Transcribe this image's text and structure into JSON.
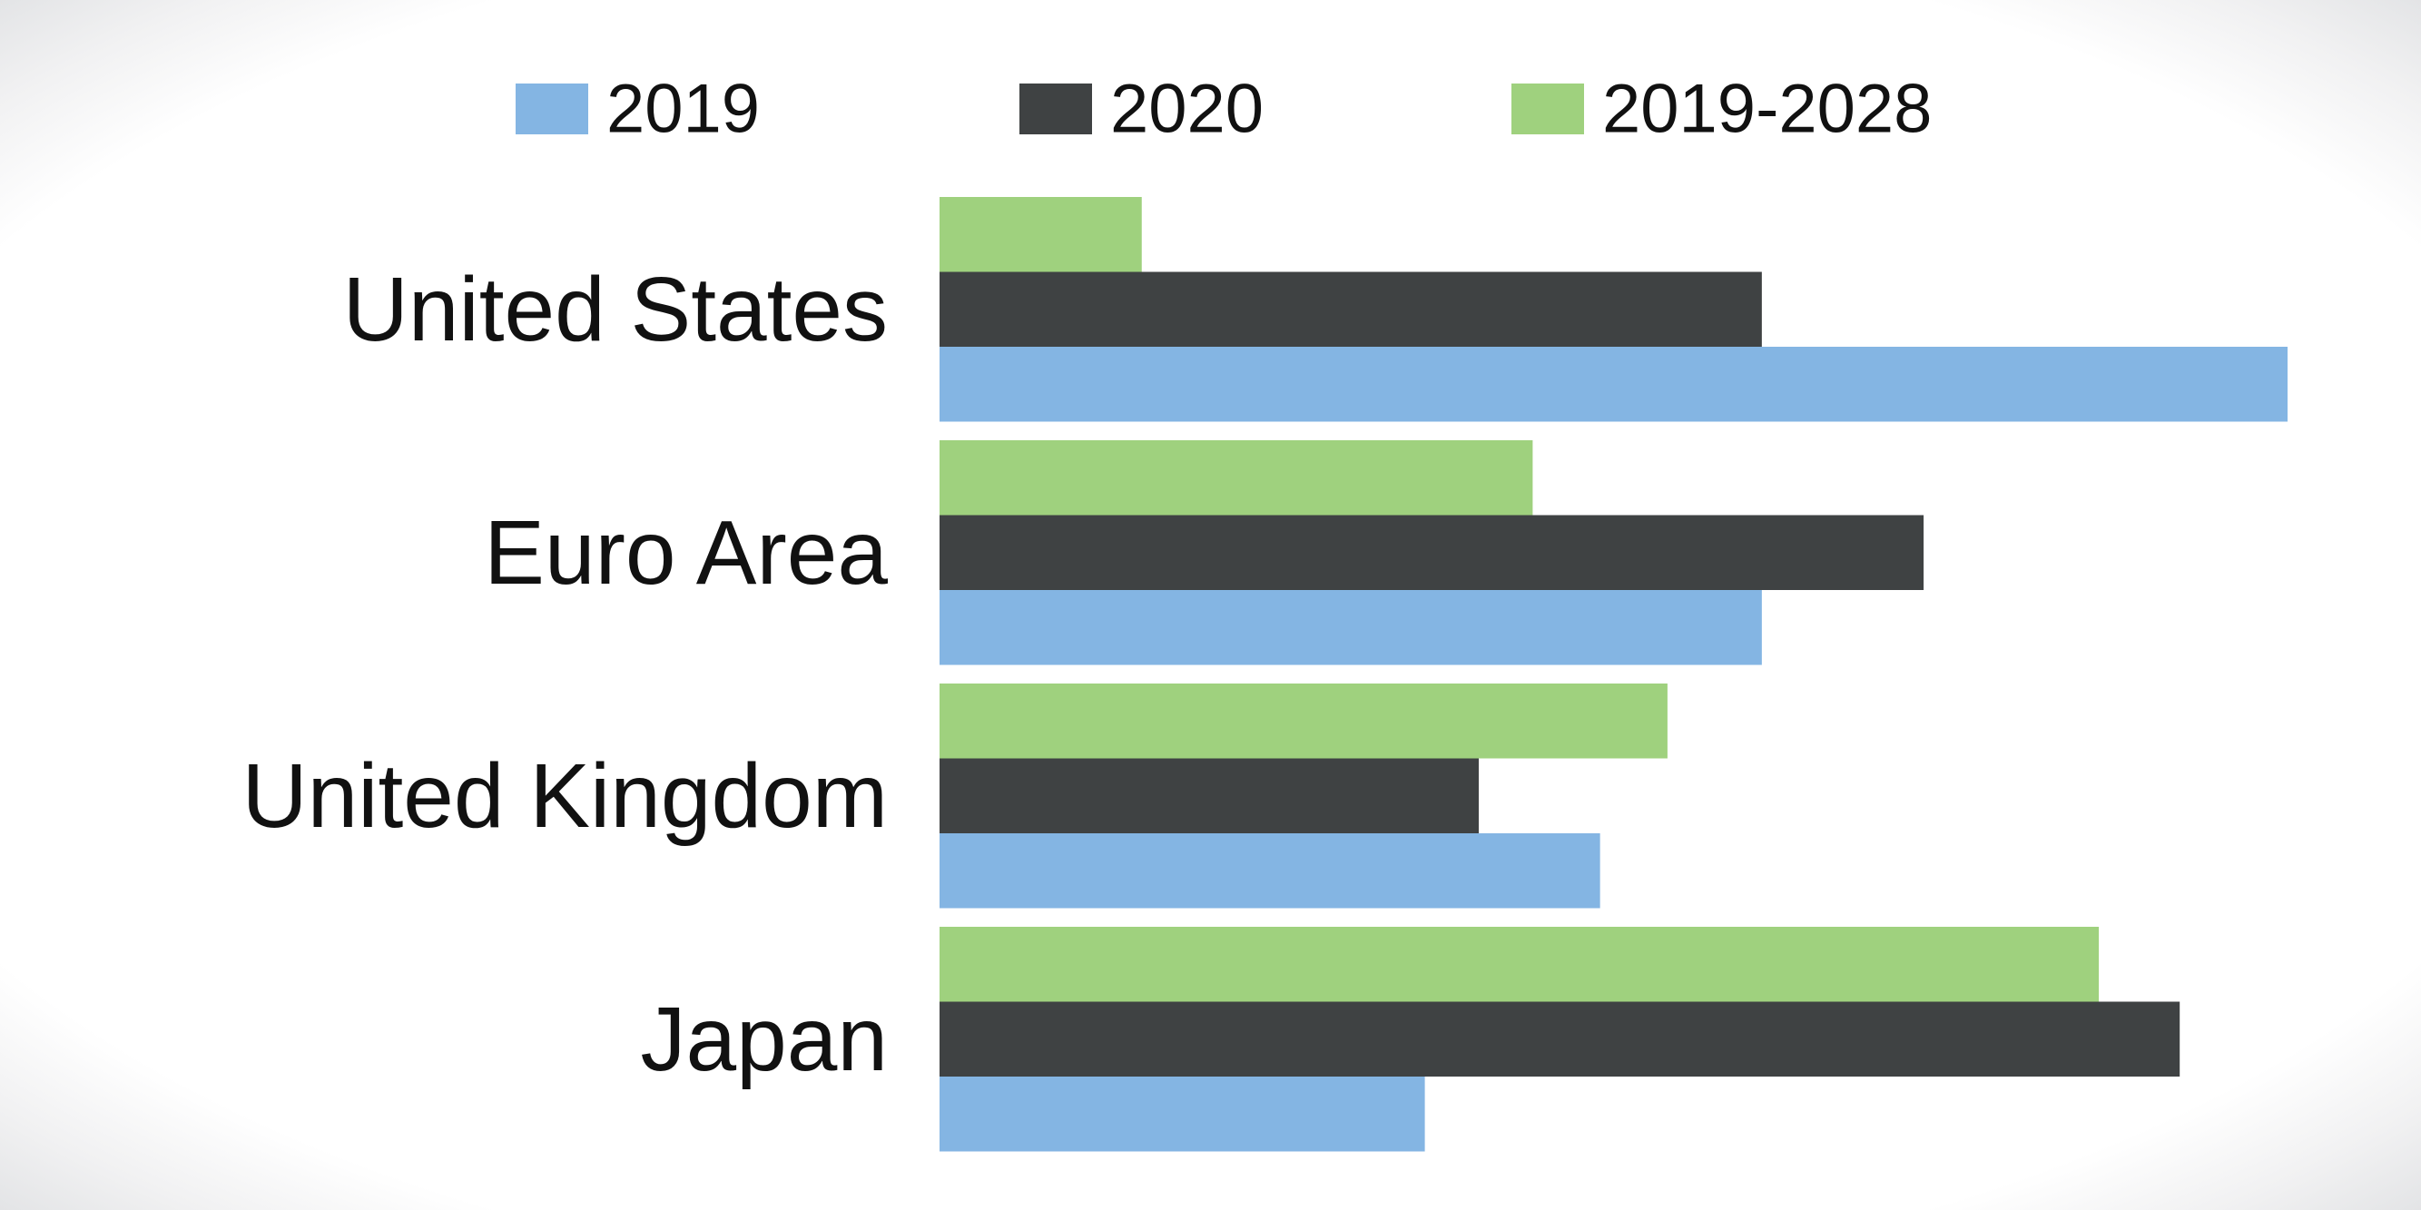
{
  "chart_data": {
    "type": "bar",
    "orientation": "horizontal",
    "title": "",
    "xlabel": "",
    "ylabel": "",
    "categories": [
      "United States",
      "Euro Area",
      "United Kingdom",
      "Japan"
    ],
    "series": [
      {
        "name": "2019",
        "color": "#84b5e3",
        "values": [
          100,
          61,
          49,
          36
        ]
      },
      {
        "name": "2020",
        "color": "#3f4243",
        "values": [
          61,
          73,
          40,
          92
        ]
      },
      {
        "name": "2019-2028",
        "color": "#9fd17e",
        "values": [
          15,
          44,
          54,
          86
        ]
      }
    ],
    "xlim": [
      0,
      100
    ],
    "grid": false,
    "axis_lines": false,
    "legend": {
      "position": "top"
    }
  }
}
